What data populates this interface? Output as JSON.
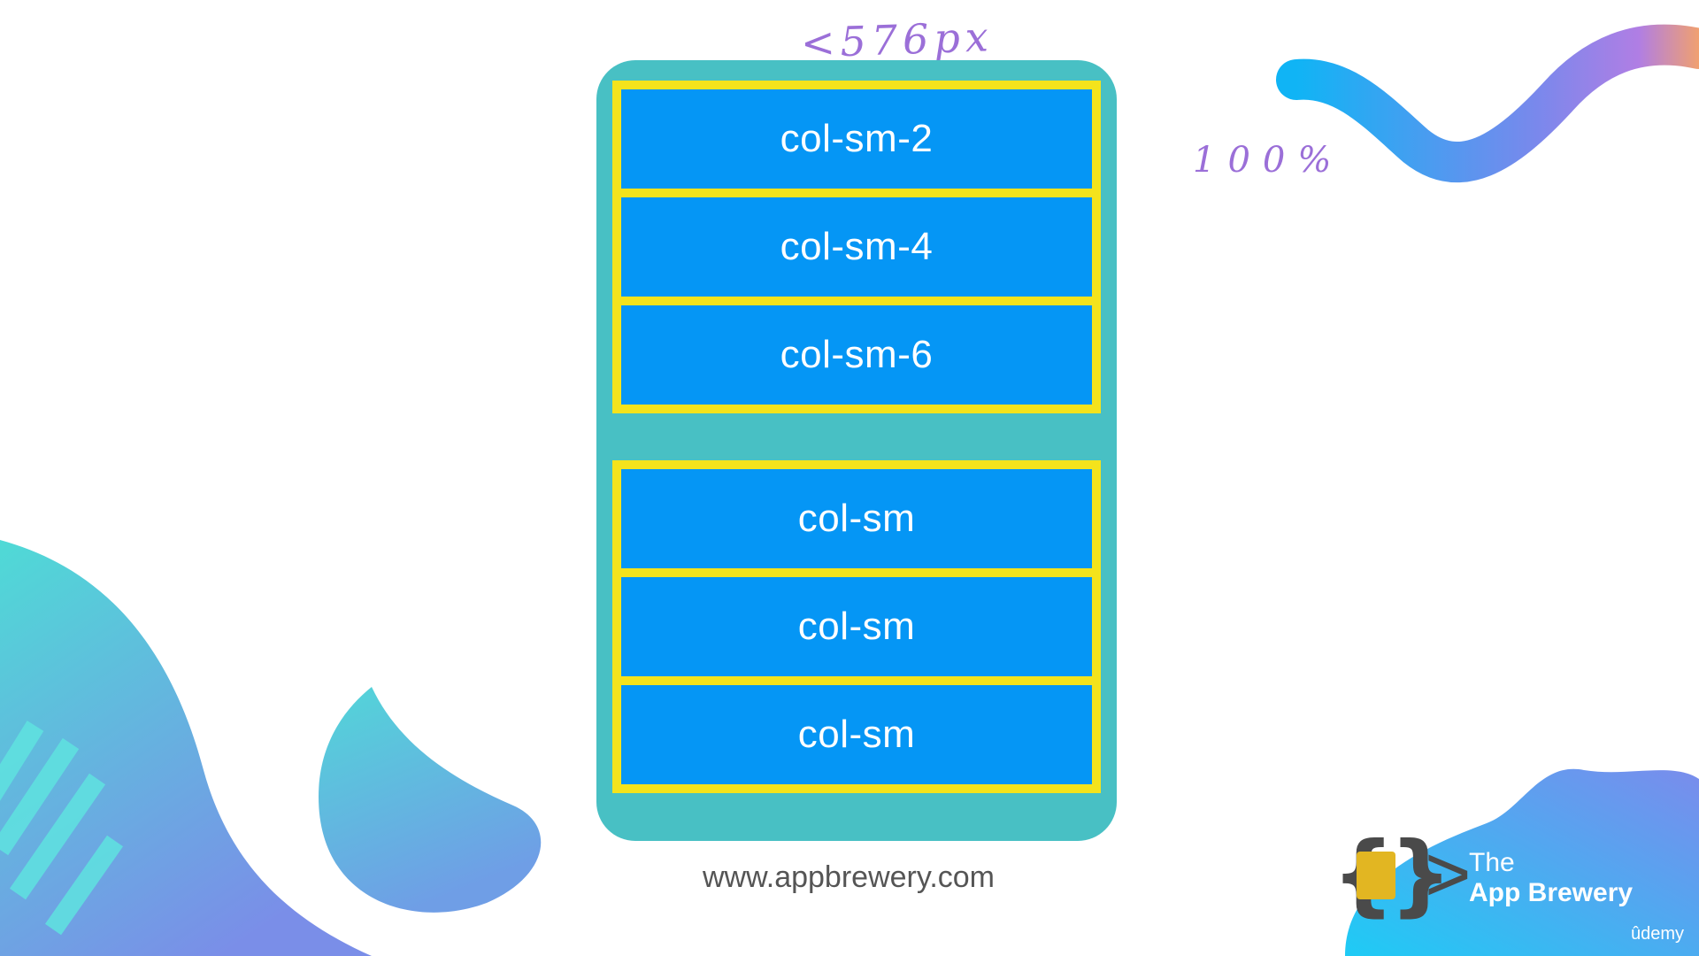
{
  "annotations": {
    "width_note": "<576px",
    "percent_note": "100%"
  },
  "rows": {
    "first": [
      "col-sm-2",
      "col-sm-4",
      "col-sm-6"
    ],
    "second": [
      "col-sm",
      "col-sm",
      "col-sm"
    ]
  },
  "footer": {
    "url": "www.appbrewery.com"
  },
  "brand": {
    "line1": "The",
    "line2": "App Brewery",
    "platform": "ûdemy"
  },
  "colors": {
    "frame": "#48c0c4",
    "row_border": "#f4e31c",
    "column_fill": "#0596f5",
    "annotation": "#9b6fd8"
  }
}
